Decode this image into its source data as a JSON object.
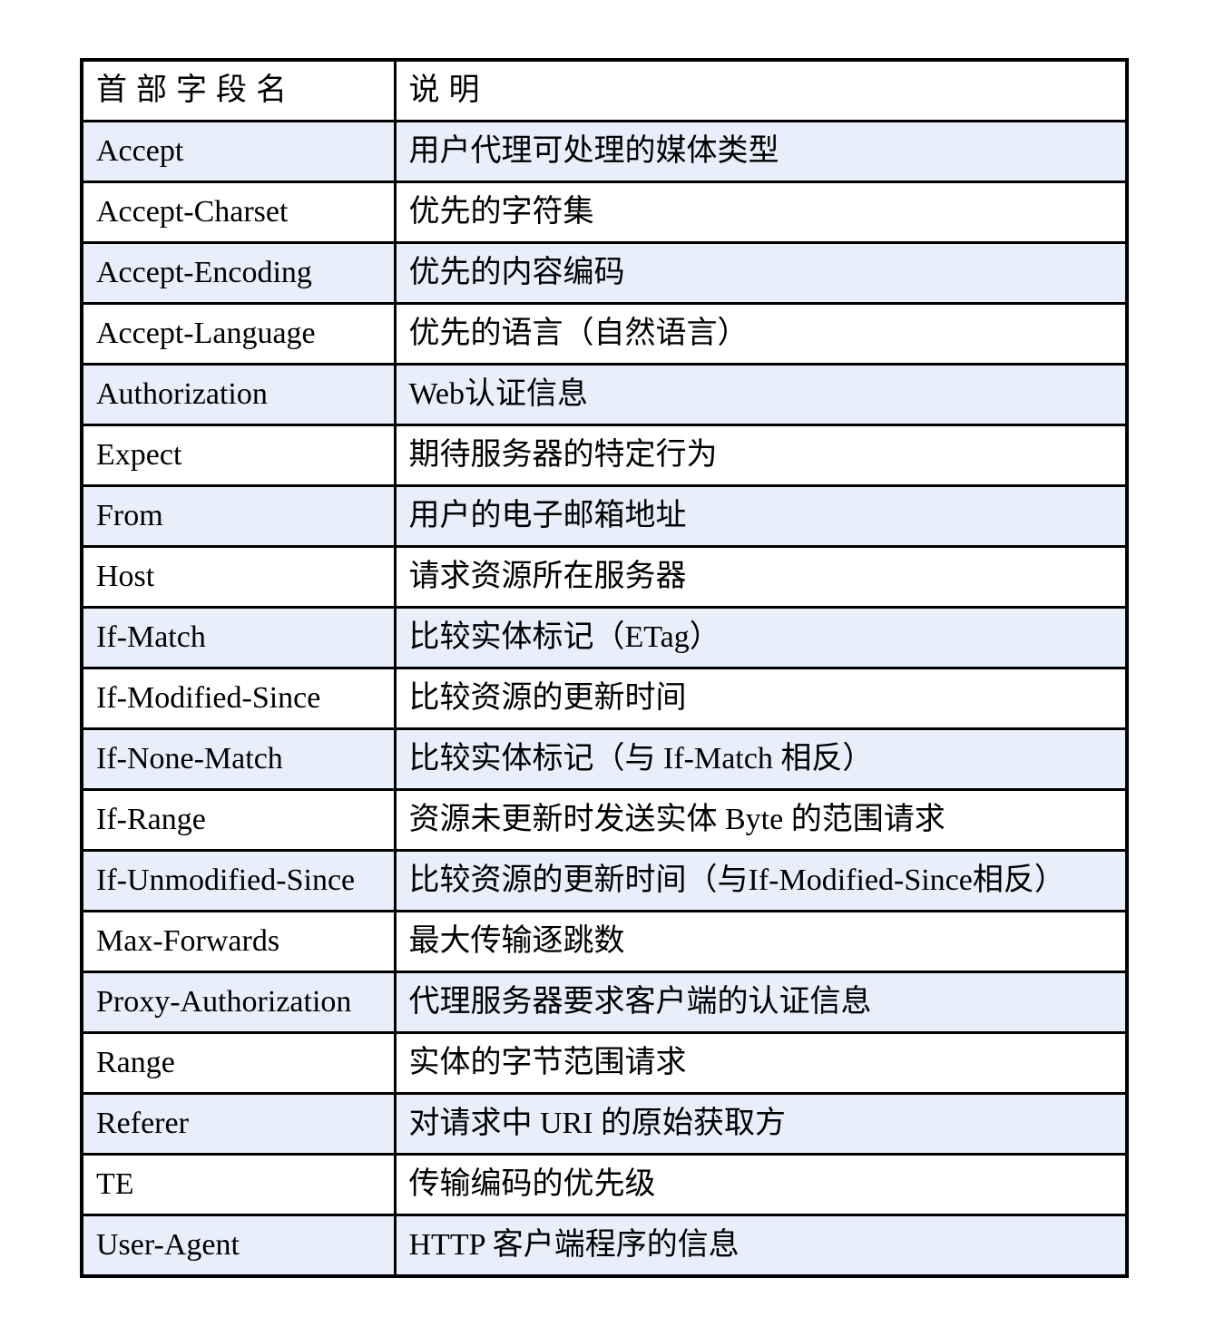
{
  "colors": {
    "row_alt_background": "#e9effa",
    "border": "#000000",
    "page_background": "#ffffff",
    "text": "#000000"
  },
  "table": {
    "headers": [
      "首部字段名",
      "说明"
    ],
    "rows": [
      {
        "field": "Accept",
        "description": "用户代理可处理的媒体类型"
      },
      {
        "field": "Accept-Charset",
        "description": "优先的字符集"
      },
      {
        "field": "Accept-Encoding",
        "description": "优先的内容编码"
      },
      {
        "field": "Accept-Language",
        "description": "优先的语言（自然语言）"
      },
      {
        "field": "Authorization",
        "description": "Web认证信息"
      },
      {
        "field": "Expect",
        "description": "期待服务器的特定行为"
      },
      {
        "field": "From",
        "description": "用户的电子邮箱地址"
      },
      {
        "field": "Host",
        "description": "请求资源所在服务器"
      },
      {
        "field": "If-Match",
        "description": "比较实体标记（ETag）"
      },
      {
        "field": "If-Modified-Since",
        "description": "比较资源的更新时间"
      },
      {
        "field": "If-None-Match",
        "description": "比较实体标记（与 If-Match 相反）"
      },
      {
        "field": "If-Range",
        "description": "资源未更新时发送实体 Byte 的范围请求"
      },
      {
        "field": "If-Unmodified-Since",
        "description": "比较资源的更新时间（与If-Modified-Since相反）"
      },
      {
        "field": "Max-Forwards",
        "description": "最大传输逐跳数"
      },
      {
        "field": "Proxy-Authorization",
        "description": "代理服务器要求客户端的认证信息"
      },
      {
        "field": "Range",
        "description": "实体的字节范围请求"
      },
      {
        "field": "Referer",
        "description": "对请求中 URI 的原始获取方"
      },
      {
        "field": "TE",
        "description": "传输编码的优先级"
      },
      {
        "field": "User-Agent",
        "description": "HTTP 客户端程序的信息"
      }
    ]
  }
}
